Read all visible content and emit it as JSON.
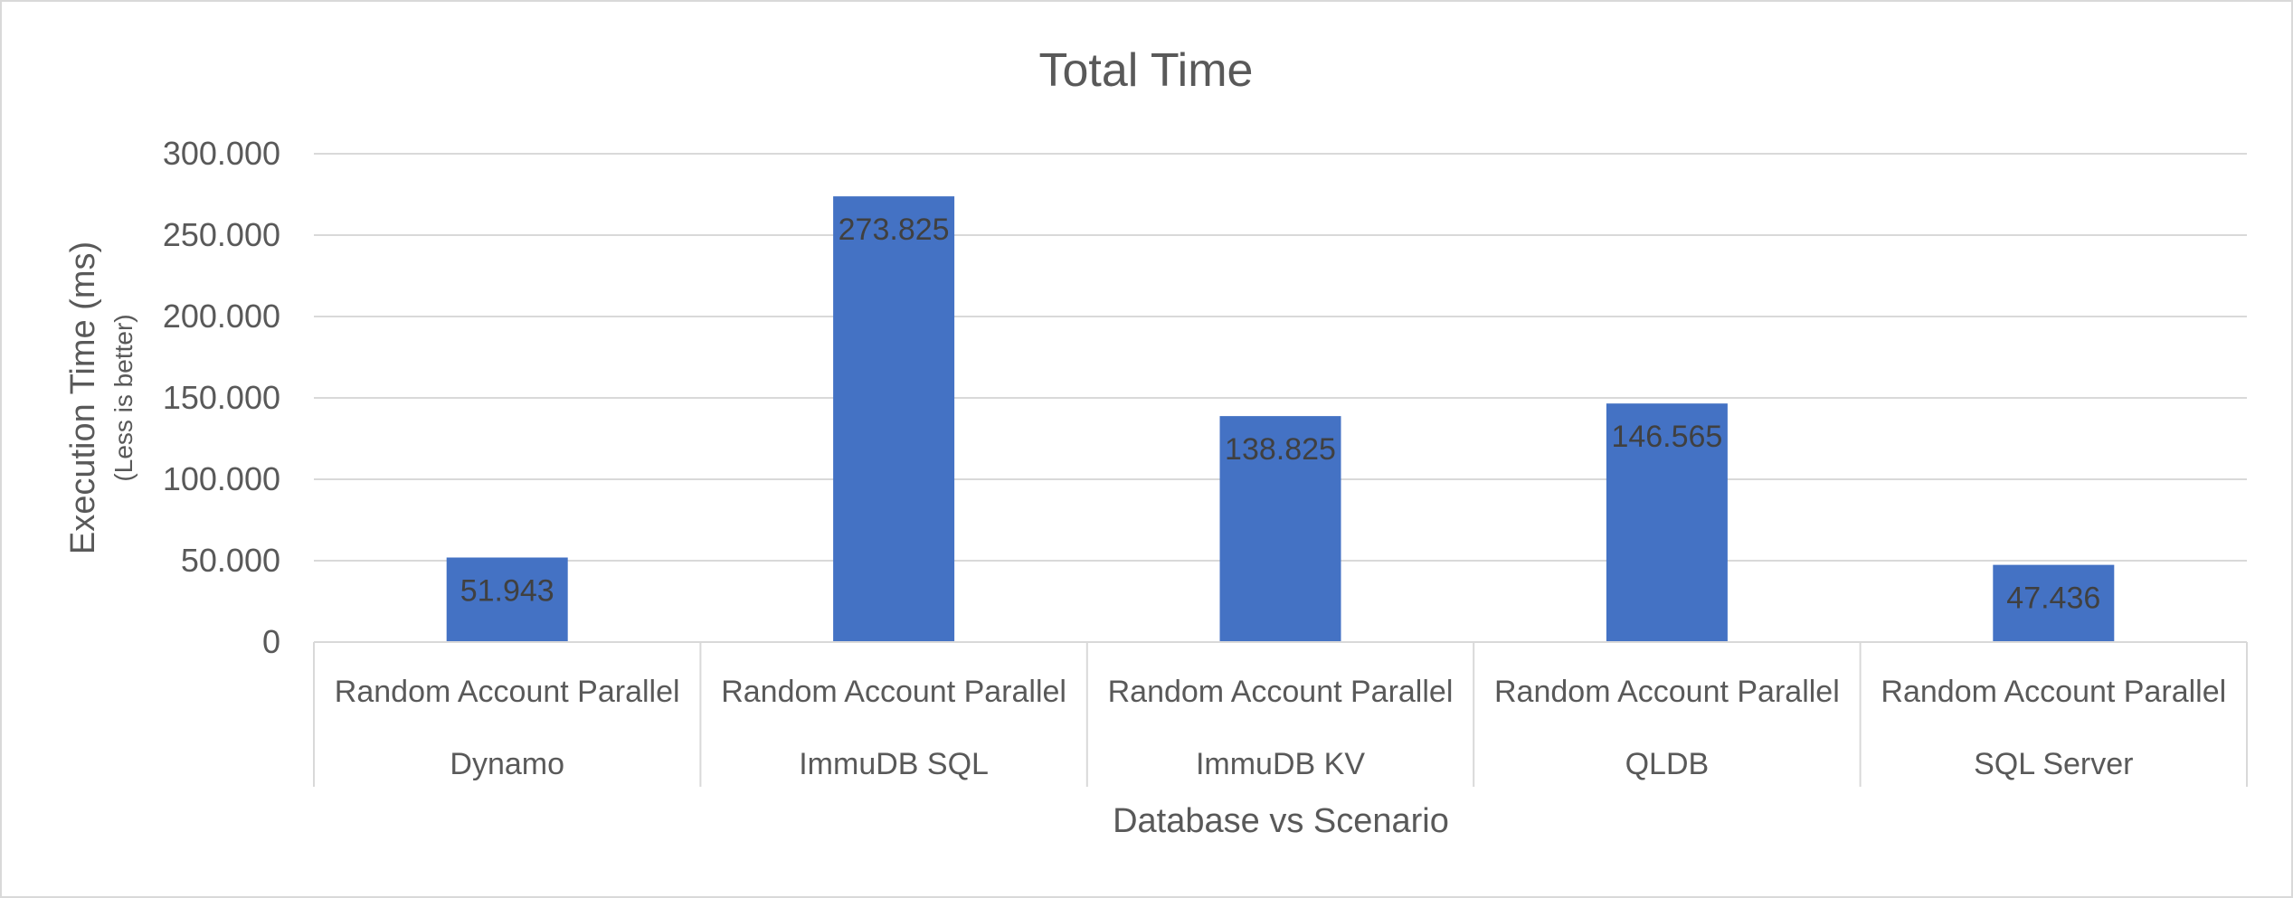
{
  "chart_data": {
    "type": "bar",
    "title": "Total Time",
    "xlabel": "Database vs Scenario",
    "ylabel": "Execution Time (ms)",
    "ylabel_note": "(Less is better)",
    "categories": [
      "Random Account Parallel",
      "Random Account Parallel",
      "Random Account Parallel",
      "Random Account Parallel",
      "Random Account Parallel"
    ],
    "groups": [
      "Dynamo",
      "ImmuDB SQL",
      "ImmuDB KV",
      "QLDB",
      "SQL Server"
    ],
    "values": [
      51.943,
      273.825,
      138.825,
      146.565,
      47.436
    ],
    "data_labels": [
      "51.943",
      "273.825",
      "138.825",
      "146.565",
      "47.436"
    ],
    "ylim": [
      0,
      300
    ],
    "yticks": [
      0,
      50,
      100,
      150,
      200,
      250,
      300
    ],
    "ytick_labels": [
      "0",
      "50.000",
      "100.000",
      "150.000",
      "200.000",
      "250.000",
      "300.000"
    ],
    "grid": true,
    "legend": "none",
    "bar_color": "#4472c4",
    "grid_color": "#d9d9d9",
    "text_color": "#595959"
  }
}
